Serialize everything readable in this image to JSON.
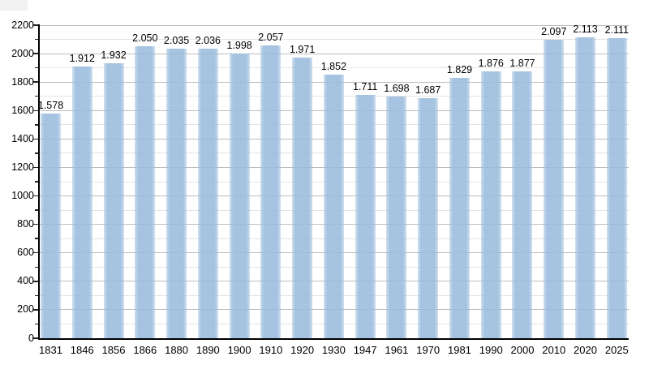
{
  "chart_data": {
    "type": "bar",
    "title": "",
    "xlabel": "",
    "ylabel": "",
    "categories": [
      "1831",
      "1846",
      "1856",
      "1866",
      "1880",
      "1890",
      "1900",
      "1910",
      "1920",
      "1930",
      "1947",
      "1961",
      "1970",
      "1981",
      "1990",
      "2000",
      "2010",
      "2020",
      "2025"
    ],
    "values": [
      1578,
      1912,
      1932,
      2050,
      2035,
      2036,
      1998,
      2057,
      1971,
      1852,
      1711,
      1698,
      1687,
      1829,
      1876,
      1877,
      2097,
      2113,
      2111
    ],
    "value_labels": [
      "1.578",
      "1.912",
      "1.932",
      "2.050",
      "2.035",
      "2.036",
      "1.998",
      "2.057",
      "1.971",
      "1.852",
      "1.711",
      "1.698",
      "1.687",
      "1.829",
      "1.876",
      "1.877",
      "2.097",
      "2.113",
      "2.111"
    ],
    "ylim": [
      0,
      2200
    ],
    "y_major_step": 200,
    "y_minor_step": 100,
    "y_tick_labels": [
      "0",
      "200",
      "400",
      "600",
      "800",
      "1000",
      "1200",
      "1400",
      "1600",
      "1800",
      "2000",
      "2200"
    ],
    "grid": true,
    "legend": false,
    "colors": {
      "bar_fill": "#9abcdd",
      "bar_fill_rendered": "#aac7e3",
      "gridline_major": "#bdbdbd",
      "gridline_minor": "#e4e4e4",
      "axis": "#000000",
      "label_text": "#000000",
      "corner_artifact": "#f1f1f1"
    }
  }
}
